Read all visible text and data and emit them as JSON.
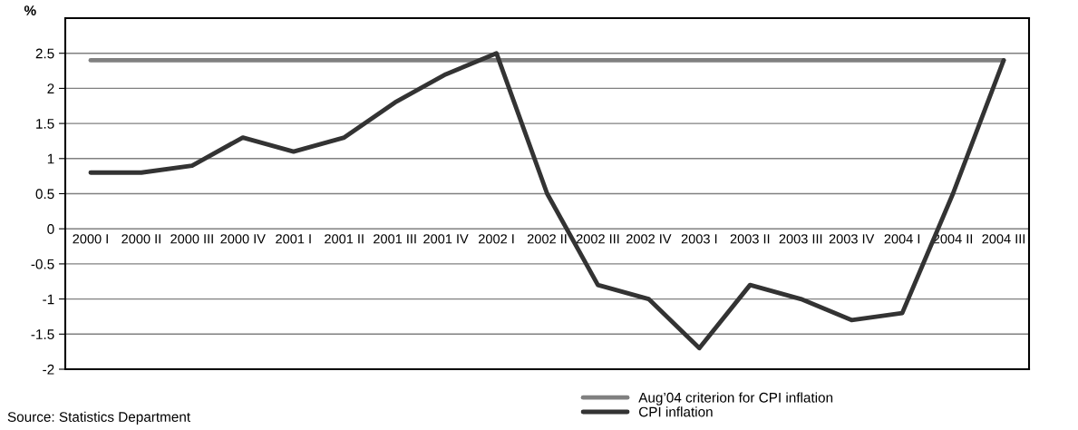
{
  "chart_data": {
    "type": "line",
    "ylabel": "%",
    "categories": [
      "2000 I",
      "2000 II",
      "2000 III",
      "2000 IV",
      "2001 I",
      "2001 II",
      "2001 III",
      "2001 IV",
      "2002 I",
      "2002 II",
      "2002 III",
      "2002 IV",
      "2003 I",
      "2003 II",
      "2003 III",
      "2003 IV",
      "2004 I",
      "2004 II",
      "2004 III"
    ],
    "series": [
      {
        "name": "Aug’04 criterion for CPI inflation",
        "color": "#808080",
        "values": [
          2.4,
          2.4,
          2.4,
          2.4,
          2.4,
          2.4,
          2.4,
          2.4,
          2.4,
          2.4,
          2.4,
          2.4,
          2.4,
          2.4,
          2.4,
          2.4,
          2.4,
          2.4,
          2.4
        ]
      },
      {
        "name": "CPI inflation",
        "color": "#333333",
        "values": [
          0.8,
          0.8,
          0.9,
          1.3,
          1.1,
          1.3,
          1.8,
          2.2,
          2.5,
          0.5,
          -0.8,
          -1.0,
          -1.7,
          -0.8,
          -1.0,
          -1.3,
          -1.2,
          0.5,
          2.4
        ]
      }
    ],
    "ylim": [
      -2,
      3
    ],
    "yticks": [
      -2,
      -1.5,
      -1,
      -0.5,
      0,
      0.5,
      1,
      1.5,
      2,
      2.5
    ],
    "grid": "y",
    "legend": "bottom",
    "marker": "none",
    "line_style": "solid",
    "annotations": [
      "Source: Statistics Department"
    ]
  }
}
